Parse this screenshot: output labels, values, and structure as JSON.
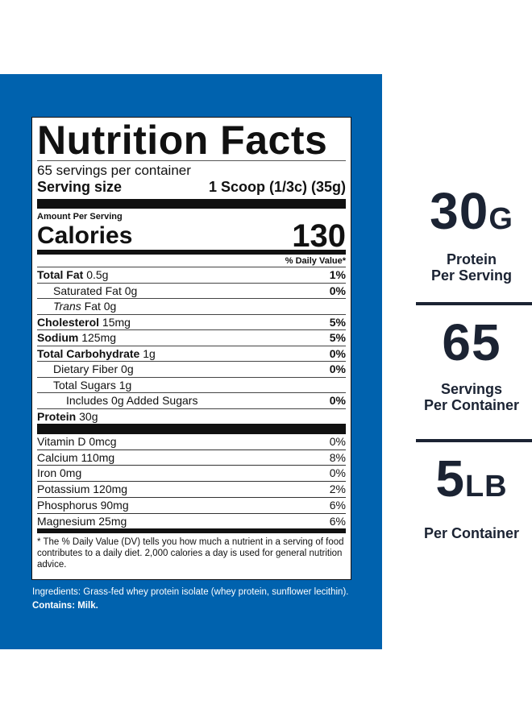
{
  "label": {
    "title": "Nutrition Facts",
    "servings": "65 servings per container",
    "serving_size_label": "Serving size",
    "serving_size_value": "1 Scoop (1/3c) (35g)",
    "amount_per_serving": "Amount Per Serving",
    "calories_label": "Calories",
    "calories_value": "130",
    "dv_header": "% Daily Value*",
    "nutrients": [
      {
        "name": "Total Fat",
        "amount": "0.5g",
        "dv": "1%",
        "bold": true,
        "indent": 0
      },
      {
        "name": "Saturated Fat",
        "amount": "0g",
        "dv": "0%",
        "bold": false,
        "indent": 1
      },
      {
        "name": "Trans",
        "name2": "Fat",
        "amount": "0g",
        "dv": "",
        "bold": false,
        "indent": 1,
        "italic": true
      },
      {
        "name": "Cholesterol",
        "amount": "15mg",
        "dv": "5%",
        "bold": true,
        "indent": 0
      },
      {
        "name": "Sodium",
        "amount": "125mg",
        "dv": "5%",
        "bold": true,
        "indent": 0
      },
      {
        "name": "Total Carbohydrate",
        "amount": "1g",
        "dv": "0%",
        "bold": true,
        "indent": 0
      },
      {
        "name": "Dietary Fiber",
        "amount": "0g",
        "dv": "0%",
        "bold": false,
        "indent": 1
      },
      {
        "name": "Total Sugars",
        "amount": "1g",
        "dv": "",
        "bold": false,
        "indent": 1
      },
      {
        "name": "Includes 0g Added Sugars",
        "amount": "",
        "dv": "0%",
        "bold": false,
        "indent": 2
      },
      {
        "name": "Protein",
        "amount": "30g",
        "dv": "",
        "bold": true,
        "indent": 0
      }
    ],
    "vitamins": [
      {
        "name": "Vitamin D  0mcg",
        "dv": "0%"
      },
      {
        "name": "Calcium  110mg",
        "dv": "8%"
      },
      {
        "name": "Iron  0mg",
        "dv": "0%"
      },
      {
        "name": "Potassium  120mg",
        "dv": "2%"
      },
      {
        "name": "Phosphorus 90mg",
        "dv": "6%"
      },
      {
        "name": "Magnesium 25mg",
        "dv": "6%"
      }
    ],
    "footnote": "* The % Daily Value (DV) tells you how much a nutrient in a serving of food contributes to a daily diet. 2,000 calories a day is used for general nutrition advice."
  },
  "ingredients": "Ingredients: Grass-fed whey protein isolate (whey protein, sunflower lecithin).",
  "contains": "Contains: Milk.",
  "stats": [
    {
      "value": "30",
      "unit": "G",
      "line1": "Protein",
      "line2": "Per Serving"
    },
    {
      "value": "65",
      "unit": "",
      "line1": "Servings",
      "line2": "Per Container"
    },
    {
      "value": "5",
      "unit": "LB",
      "line1": "Per Container",
      "line2": ""
    }
  ],
  "colors": {
    "background_blue": "#0062ae",
    "stat_text": "#1b2333"
  }
}
